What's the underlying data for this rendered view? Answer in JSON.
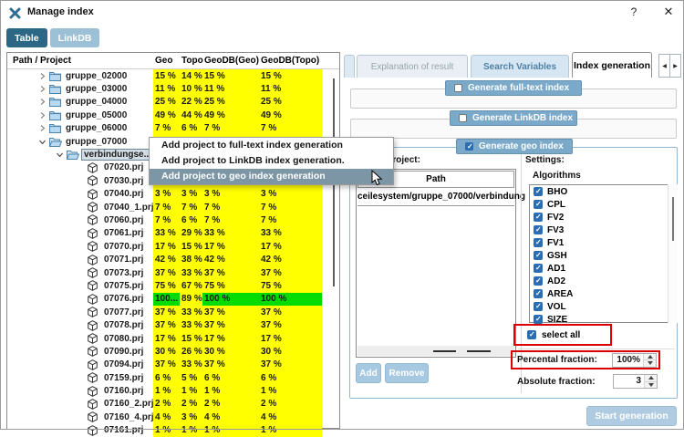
{
  "window": {
    "title": "Manage index",
    "help_label": "?",
    "close_label": "✕"
  },
  "view_tabs": [
    {
      "label": "Table",
      "active": true
    },
    {
      "label": "LinkDB",
      "active": false
    }
  ],
  "table": {
    "columns": [
      "Path / Project",
      "Geo",
      "Topo",
      "GeoDB(Geo)",
      "GeoDB(Topo)"
    ],
    "rows": [
      {
        "label": "gruppe_02000",
        "level": 1,
        "icon": "folder",
        "twist": "r",
        "selected": false,
        "values": [
          "15 %",
          "14 %",
          "15 %",
          "15 %"
        ],
        "cell_colors": [
          "y",
          "y",
          "y",
          "y"
        ]
      },
      {
        "label": "gruppe_03000",
        "level": 1,
        "icon": "folder",
        "twist": "r",
        "selected": false,
        "values": [
          "11 %",
          "10 %",
          "11 %",
          "11 %"
        ],
        "cell_colors": [
          "y",
          "y",
          "y",
          "y"
        ]
      },
      {
        "label": "gruppe_04000",
        "level": 1,
        "icon": "folder",
        "twist": "r",
        "selected": false,
        "values": [
          "25 %",
          "22 %",
          "25 %",
          "25 %"
        ],
        "cell_colors": [
          "y",
          "y",
          "y",
          "y"
        ]
      },
      {
        "label": "gruppe_05000",
        "level": 1,
        "icon": "folder",
        "twist": "r",
        "selected": false,
        "values": [
          "49 %",
          "44 %",
          "49 %",
          "49 %"
        ],
        "cell_colors": [
          "y",
          "y",
          "y",
          "y"
        ]
      },
      {
        "label": "gruppe_06000",
        "level": 1,
        "icon": "folder",
        "twist": "r",
        "selected": false,
        "values": [
          "7 %",
          "6 %",
          "7 %",
          "7 %"
        ],
        "cell_colors": [
          "y",
          "y",
          "y",
          "y"
        ]
      },
      {
        "label": "gruppe_07000",
        "level": 1,
        "icon": "folderOpen",
        "twist": "d",
        "selected": false,
        "values": [
          "",
          "",
          "",
          ""
        ],
        "cell_colors": [
          "y",
          "y",
          "y",
          "y"
        ]
      },
      {
        "label": "verbindungse...",
        "level": 2,
        "icon": "folderOpen",
        "twist": "d",
        "selected": true,
        "values": [
          "",
          "",
          "",
          ""
        ],
        "cell_colors": [
          "y",
          "y",
          "y",
          "y"
        ]
      },
      {
        "label": "07020.prj",
        "level": 3,
        "icon": "cube",
        "twist": "n",
        "selected": false,
        "values": [
          "",
          "",
          "",
          ""
        ],
        "cell_colors": [
          "y",
          "y",
          "y",
          "y"
        ]
      },
      {
        "label": "07030.prj",
        "level": 3,
        "icon": "cube",
        "twist": "n",
        "selected": false,
        "values": [
          "",
          "",
          "",
          ""
        ],
        "cell_colors": [
          "y",
          "y",
          "y",
          "y"
        ]
      },
      {
        "label": "07040.prj",
        "level": 3,
        "icon": "cube",
        "twist": "n",
        "selected": false,
        "values": [
          "3 %",
          "3 %",
          "3 %",
          "3 %"
        ],
        "cell_colors": [
          "y",
          "y",
          "y",
          "y"
        ]
      },
      {
        "label": "07040_1.prj",
        "level": 3,
        "icon": "cube",
        "twist": "n",
        "selected": false,
        "values": [
          "7 %",
          "7 %",
          "7 %",
          "7 %"
        ],
        "cell_colors": [
          "y",
          "y",
          "y",
          "y"
        ]
      },
      {
        "label": "07060.prj",
        "level": 3,
        "icon": "cube",
        "twist": "n",
        "selected": false,
        "values": [
          "7 %",
          "6 %",
          "7 %",
          "7 %"
        ],
        "cell_colors": [
          "y",
          "y",
          "y",
          "y"
        ]
      },
      {
        "label": "07061.prj",
        "level": 3,
        "icon": "cube",
        "twist": "n",
        "selected": false,
        "values": [
          "33 %",
          "29 %",
          "33 %",
          "33 %"
        ],
        "cell_colors": [
          "y",
          "y",
          "y",
          "y"
        ]
      },
      {
        "label": "07070.prj",
        "level": 3,
        "icon": "cube",
        "twist": "n",
        "selected": false,
        "values": [
          "17 %",
          "15 %",
          "17 %",
          "17 %"
        ],
        "cell_colors": [
          "y",
          "y",
          "y",
          "y"
        ]
      },
      {
        "label": "07071.prj",
        "level": 3,
        "icon": "cube",
        "twist": "n",
        "selected": false,
        "values": [
          "42 %",
          "38 %",
          "42 %",
          "42 %"
        ],
        "cell_colors": [
          "y",
          "y",
          "y",
          "y"
        ]
      },
      {
        "label": "07073.prj",
        "level": 3,
        "icon": "cube",
        "twist": "n",
        "selected": false,
        "values": [
          "37 %",
          "33 %",
          "37 %",
          "37 %"
        ],
        "cell_colors": [
          "y",
          "y",
          "y",
          "y"
        ]
      },
      {
        "label": "07075.prj",
        "level": 3,
        "icon": "cube",
        "twist": "n",
        "selected": false,
        "values": [
          "75 %",
          "67 %",
          "75 %",
          "75 %"
        ],
        "cell_colors": [
          "y",
          "y",
          "y",
          "y"
        ]
      },
      {
        "label": "07076.prj",
        "level": 3,
        "icon": "cube",
        "twist": "n",
        "selected": false,
        "values": [
          "100...",
          "89 %",
          "100 %",
          "100 %"
        ],
        "cell_colors": [
          "g",
          "y",
          "g",
          "g"
        ]
      },
      {
        "label": "07077.prj",
        "level": 3,
        "icon": "cube",
        "twist": "n",
        "selected": false,
        "values": [
          "37 %",
          "33 %",
          "37 %",
          "37 %"
        ],
        "cell_colors": [
          "y",
          "y",
          "y",
          "y"
        ]
      },
      {
        "label": "07078.prj",
        "level": 3,
        "icon": "cube",
        "twist": "n",
        "selected": false,
        "values": [
          "37 %",
          "33 %",
          "37 %",
          "37 %"
        ],
        "cell_colors": [
          "y",
          "y",
          "y",
          "y"
        ]
      },
      {
        "label": "07080.prj",
        "level": 3,
        "icon": "cube",
        "twist": "n",
        "selected": false,
        "values": [
          "17 %",
          "15 %",
          "17 %",
          "17 %"
        ],
        "cell_colors": [
          "y",
          "y",
          "y",
          "y"
        ]
      },
      {
        "label": "07090.prj",
        "level": 3,
        "icon": "cube",
        "twist": "n",
        "selected": false,
        "values": [
          "30 %",
          "26 %",
          "30 %",
          "30 %"
        ],
        "cell_colors": [
          "y",
          "y",
          "y",
          "y"
        ]
      },
      {
        "label": "07094.prj",
        "level": 3,
        "icon": "cube",
        "twist": "n",
        "selected": false,
        "values": [
          "37 %",
          "33 %",
          "37 %",
          "37 %"
        ],
        "cell_colors": [
          "y",
          "y",
          "y",
          "y"
        ]
      },
      {
        "label": "07159.prj",
        "level": 3,
        "icon": "cube",
        "twist": "n",
        "selected": false,
        "values": [
          "6 %",
          "5 %",
          "6 %",
          "6 %"
        ],
        "cell_colors": [
          "y",
          "y",
          "y",
          "y"
        ]
      },
      {
        "label": "07160.prj",
        "level": 3,
        "icon": "cube",
        "twist": "n",
        "selected": false,
        "values": [
          "1 %",
          "1 %",
          "1 %",
          "1 %"
        ],
        "cell_colors": [
          "y",
          "y",
          "y",
          "y"
        ]
      },
      {
        "label": "07160_2.prj",
        "level": 3,
        "icon": "cube",
        "twist": "n",
        "selected": false,
        "values": [
          "2 %",
          "2 %",
          "2 %",
          "2 %"
        ],
        "cell_colors": [
          "y",
          "y",
          "y",
          "y"
        ]
      },
      {
        "label": "07160_4.prj",
        "level": 3,
        "icon": "cube",
        "twist": "n",
        "selected": false,
        "values": [
          "4 %",
          "3 %",
          "4 %",
          "4 %"
        ],
        "cell_colors": [
          "y",
          "y",
          "y",
          "y"
        ]
      },
      {
        "label": "07161.prj",
        "level": 3,
        "icon": "cube",
        "twist": "n",
        "selected": false,
        "values": [
          "1 %",
          "1 %",
          "1 %",
          "1 %"
        ],
        "cell_colors": [
          "y",
          "y",
          "y",
          "y"
        ]
      }
    ]
  },
  "context_menu": {
    "items": [
      {
        "label": "Add project to full-text index generation",
        "highlighted": false
      },
      {
        "label": "Add project to LinkDB index generation.",
        "highlighted": false
      },
      {
        "label": "Add project to geo index generation",
        "highlighted": true
      }
    ]
  },
  "panel": {
    "tabs": [
      {
        "label": "Explanation of result",
        "state": "disabled"
      },
      {
        "label": "Search Variables",
        "state": "normal"
      },
      {
        "label": "Index generation",
        "state": "active"
      }
    ],
    "tab_scroll": {
      "left": "◀",
      "right": "▶"
    },
    "groups": [
      {
        "label": "Generate full-text index",
        "checked": false
      },
      {
        "label": "Generate LinkDB index",
        "checked": false
      },
      {
        "label": "Generate geo index",
        "checked": true
      }
    ],
    "select_project": {
      "label": "Select project:",
      "path_header": "Path",
      "rows": [
        "ceilesystem/gruppe_07000/verbindung"
      ],
      "add_label": "Add",
      "remove_label": "Remove"
    },
    "settings": {
      "label": "Settings:",
      "algorithms_label": "Algorithms",
      "algorithms": [
        "BHO",
        "CPL",
        "FV2",
        "FV3",
        "FV1",
        "GSH",
        "AD1",
        "AD2",
        "AREA",
        "VOL",
        "SIZE"
      ],
      "select_all_label": "select all",
      "percental": {
        "label": "Percental fraction:",
        "value": "100%"
      },
      "absolute": {
        "label": "Absolute fraction:",
        "value": "3"
      }
    },
    "start_label": "Start generation"
  },
  "colors": {
    "cell_yellow": "#ffff00",
    "cell_green": "#00dc00",
    "highlight_red": "#dd0000",
    "group_bar_blue": "#7aa9c9",
    "active_view_tab": "#2c6886",
    "menu_highlight": "#7d96a6",
    "checkbox_blue": "#2a6db5"
  }
}
